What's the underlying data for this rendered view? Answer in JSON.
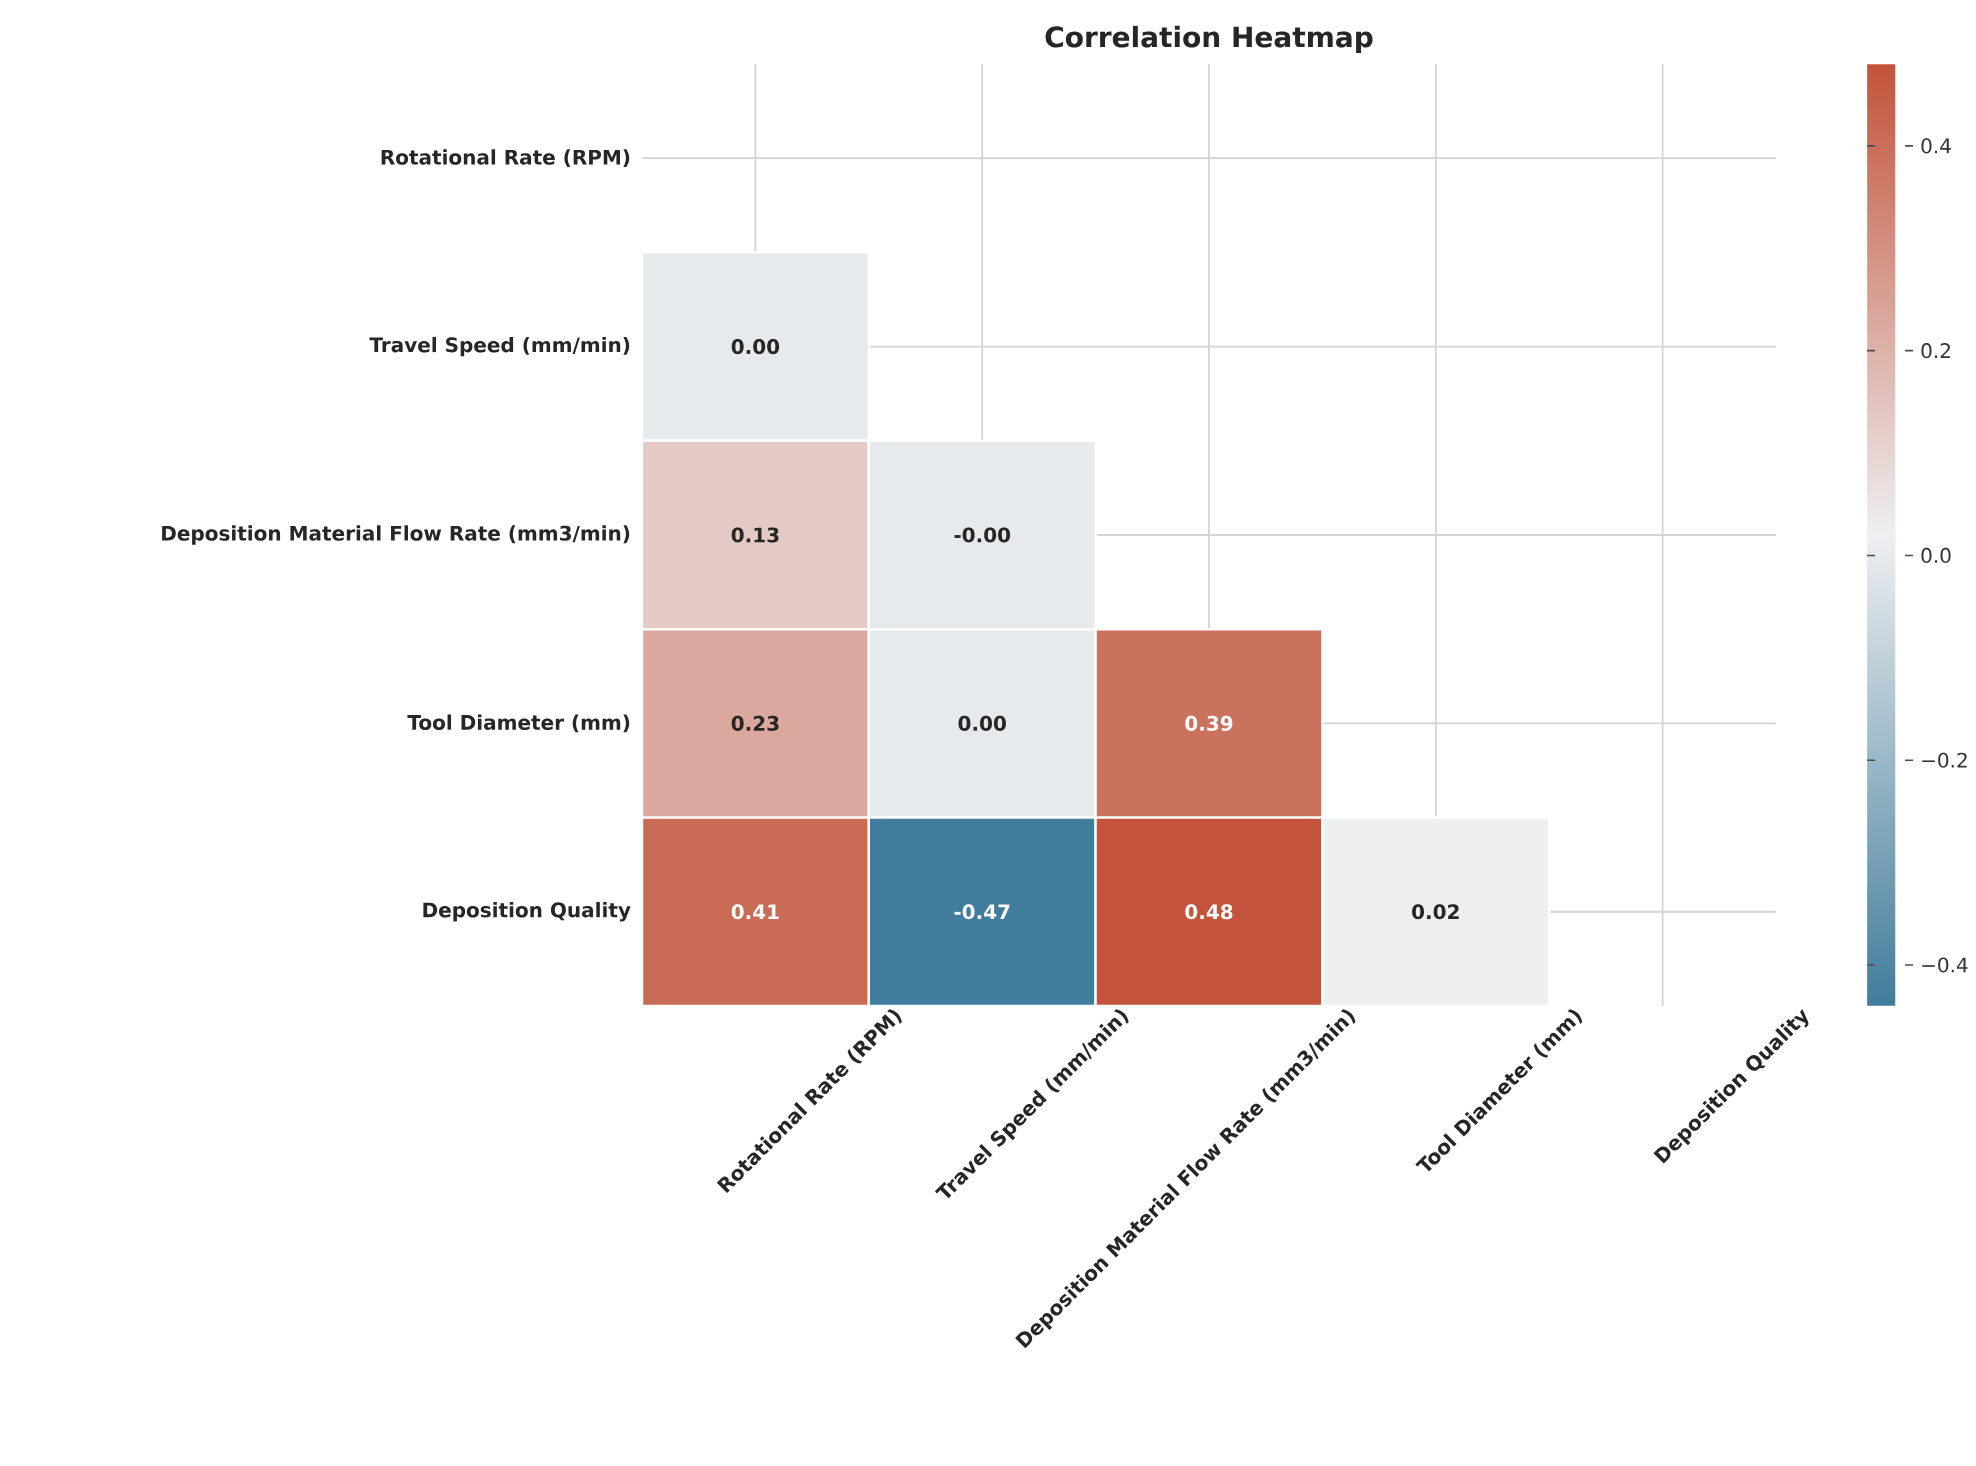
{
  "chart_data": {
    "type": "heatmap",
    "title": "Correlation Heatmap",
    "categories": [
      "Rotational Rate (RPM)",
      "Travel Speed (mm/min)",
      "Deposition Material Flow Rate (mm3/min)",
      "Tool Diameter (mm)",
      "Deposition Quality"
    ],
    "y_categories": [
      "Rotational Rate (RPM)",
      "Travel Speed (mm/min)",
      "Deposition Material Flow Rate (mm3/min)",
      "Tool Diameter (mm)",
      "Deposition Quality"
    ],
    "cells": [
      [
        null,
        null,
        null,
        null,
        null
      ],
      [
        0.0,
        null,
        null,
        null,
        null
      ],
      [
        0.13,
        0.0,
        null,
        null,
        null
      ],
      [
        0.23,
        0.0,
        0.39,
        null,
        null
      ],
      [
        0.41,
        -0.47,
        0.48,
        0.02,
        null
      ]
    ],
    "cell_labels": [
      [
        null,
        null,
        null,
        null,
        null
      ],
      [
        "0.00",
        null,
        null,
        null,
        null
      ],
      [
        "0.13",
        "-0.00",
        null,
        null,
        null
      ],
      [
        "0.23",
        "0.00",
        "0.39",
        null,
        null
      ],
      [
        "0.41",
        "-0.47",
        "0.48",
        "0.02",
        null
      ]
    ],
    "clim": [
      -0.44,
      0.48
    ],
    "cticks": [
      {
        "value": -0.4,
        "label": "−0.4"
      },
      {
        "value": -0.2,
        "label": "−0.2"
      },
      {
        "value": 0,
        "label": "0.0"
      },
      {
        "value": 0.2,
        "label": "0.2"
      },
      {
        "value": 0.4,
        "label": "0.4"
      }
    ],
    "grid": true
  }
}
